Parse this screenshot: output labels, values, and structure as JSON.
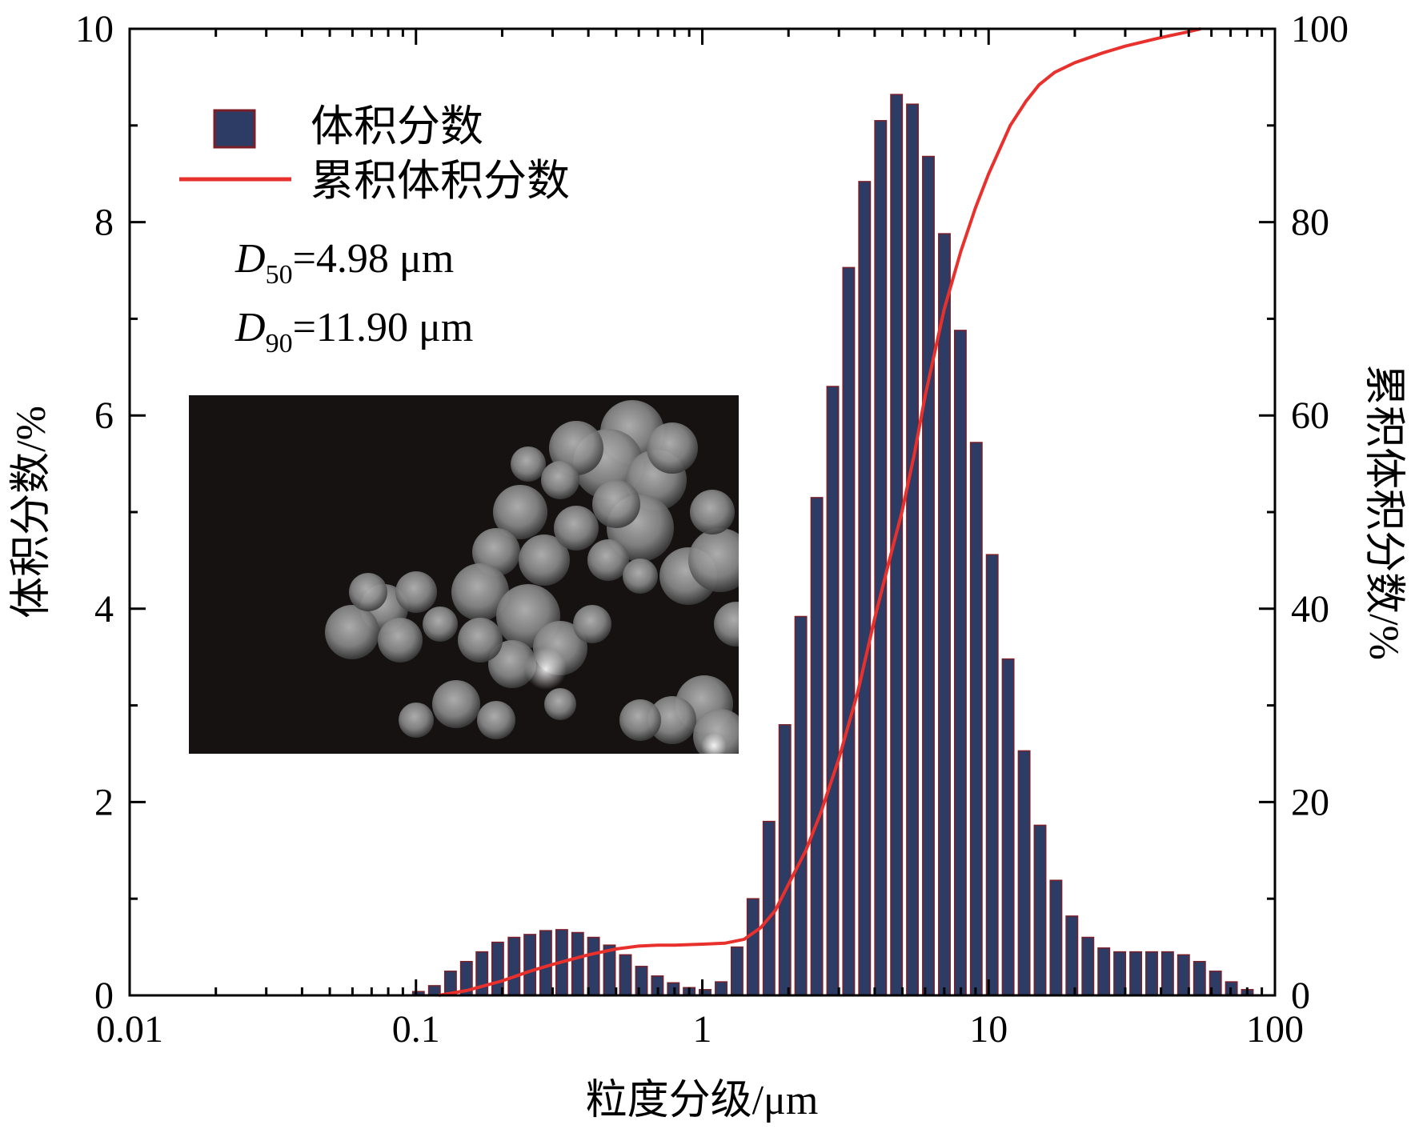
{
  "chart_data": {
    "type": "bar",
    "xscale": "log",
    "xlim": [
      0.01,
      100
    ],
    "ylim": [
      0,
      10
    ],
    "y2lim": [
      0,
      100
    ],
    "xlabel": "粒度分级/μm",
    "ylabel": "体积分数/%",
    "y2label": "累积体积分数/%",
    "x_ticks": [
      "0.01",
      "0.1",
      "1",
      "10",
      "100"
    ],
    "x_tick_values": [
      0.01,
      0.1,
      1,
      10,
      100
    ],
    "y_ticks": [
      "0",
      "2",
      "4",
      "6",
      "8",
      "10"
    ],
    "y_tick_values": [
      0,
      2,
      4,
      6,
      8,
      10
    ],
    "y2_ticks": [
      "0",
      "20",
      "40",
      "60",
      "80",
      "100"
    ],
    "y2_tick_values": [
      0,
      20,
      40,
      60,
      80,
      100
    ],
    "legend_position": "top-left",
    "bar_color": "#2d3c64",
    "bar_edge_color": "#7a1f2a",
    "line_color": "#e8302d",
    "series": [
      {
        "name": "体积分数",
        "kind": "bar",
        "axis": "left",
        "x": [
          0.102,
          0.116,
          0.132,
          0.15,
          0.17,
          0.193,
          0.22,
          0.25,
          0.284,
          0.323,
          0.367,
          0.417,
          0.474,
          0.539,
          0.613,
          0.697,
          0.792,
          0.9,
          1.023,
          1.163,
          1.322,
          1.503,
          1.709,
          1.943,
          2.209,
          2.511,
          2.855,
          3.245,
          3.689,
          4.194,
          4.768,
          5.42,
          6.162,
          7.005,
          7.964,
          9.054,
          10.29,
          11.7,
          13.3,
          15.12,
          17.19,
          19.54,
          22.22,
          25.26,
          28.71,
          32.64,
          37.11,
          42.18,
          47.96,
          54.52,
          61.98,
          70.46,
          80.1
        ],
        "values": [
          0.04,
          0.1,
          0.25,
          0.35,
          0.45,
          0.55,
          0.6,
          0.63,
          0.67,
          0.68,
          0.65,
          0.6,
          0.52,
          0.42,
          0.3,
          0.2,
          0.13,
          0.08,
          0.06,
          0.14,
          0.5,
          1.0,
          1.8,
          2.8,
          3.92,
          5.15,
          6.3,
          7.53,
          8.42,
          9.05,
          9.32,
          9.22,
          8.68,
          7.88,
          6.88,
          5.72,
          4.56,
          3.48,
          2.53,
          1.76,
          1.19,
          0.82,
          0.6,
          0.49,
          0.45,
          0.45,
          0.45,
          0.45,
          0.42,
          0.35,
          0.25,
          0.14,
          0.06
        ]
      },
      {
        "name": "累积体积分数",
        "kind": "line",
        "axis": "right",
        "x": [
          0.12,
          0.15,
          0.2,
          0.25,
          0.3,
          0.4,
          0.5,
          0.6,
          0.7,
          0.8,
          1.0,
          1.2,
          1.4,
          1.6,
          1.8,
          2.0,
          2.3,
          2.6,
          3.0,
          3.5,
          4.0,
          4.5,
          4.98,
          5.5,
          6.0,
          7.0,
          8.0,
          9.0,
          10.0,
          11.9,
          13.5,
          15.0,
          17.0,
          20.0,
          25.0,
          30.0,
          40.0,
          50.0,
          55.0
        ],
        "values": [
          0.0,
          0.5,
          1.5,
          2.5,
          3.2,
          4.2,
          4.8,
          5.1,
          5.2,
          5.2,
          5.3,
          5.4,
          5.8,
          7.0,
          8.8,
          11.5,
          15.0,
          19.0,
          24.5,
          31.5,
          39.0,
          45.0,
          50.0,
          56.0,
          62.0,
          71.0,
          77.0,
          81.5,
          85.0,
          90.0,
          92.5,
          94.2,
          95.5,
          96.5,
          97.5,
          98.2,
          99.1,
          99.7,
          100.0
        ]
      }
    ],
    "annotations": {
      "d50_symbol": "D",
      "d50_sub": "50",
      "d50_value": "=4.98 μm",
      "d90_symbol": "D",
      "d90_sub": "90",
      "d90_value": "=11.90 μm"
    }
  },
  "inset": {
    "kind": "micrograph",
    "description_icon": "sem-particle-micrograph"
  }
}
